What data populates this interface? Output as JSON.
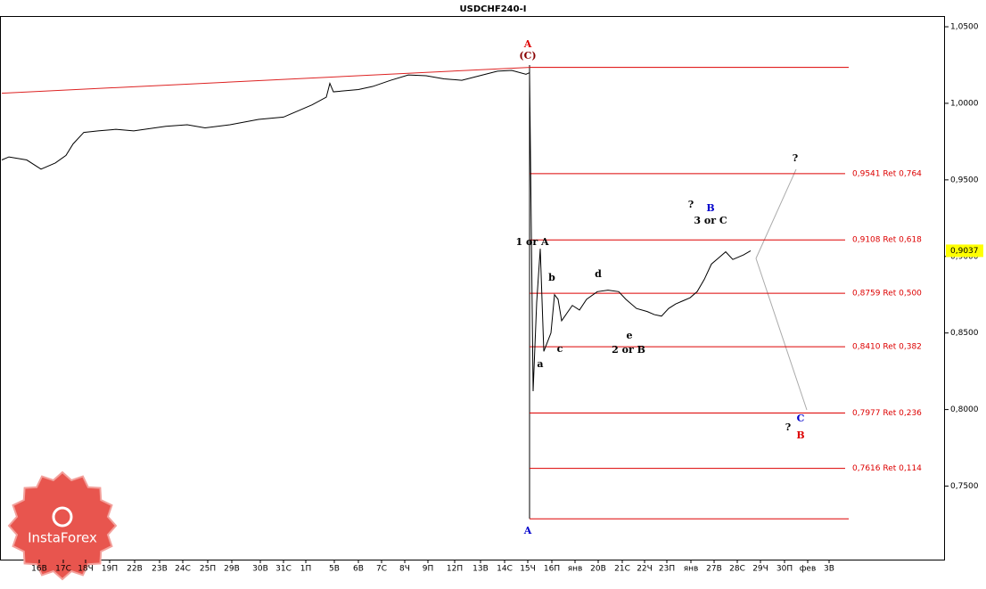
{
  "chart_data": {
    "type": "line",
    "title": "USDCHF240-I",
    "x": [
      0,
      2,
      7,
      11,
      15,
      18,
      20,
      23,
      27,
      32,
      37,
      46,
      52,
      57,
      64,
      72,
      79,
      83,
      87,
      91,
      92,
      93,
      100,
      104,
      109,
      114,
      119,
      124,
      129,
      134,
      139,
      143,
      147,
      148,
      149,
      150,
      151,
      152,
      154,
      155,
      156,
      157,
      160,
      162,
      164,
      167,
      170,
      173,
      175,
      178,
      181,
      183,
      185,
      187,
      189,
      191,
      193,
      195,
      197,
      199,
      201,
      203,
      205,
      208,
      210
    ],
    "series": [
      {
        "name": "USDCHF240-I",
        "color": "#000000",
        "values": [
          0.963,
          0.965,
          0.963,
          0.957,
          0.961,
          0.966,
          0.9735,
          0.981,
          0.982,
          0.983,
          0.982,
          0.985,
          0.986,
          0.984,
          0.986,
          0.9895,
          0.991,
          0.995,
          0.999,
          1.004,
          1.013,
          1.0075,
          1.009,
          1.011,
          1.015,
          1.0185,
          1.018,
          1.016,
          1.015,
          1.018,
          1.021,
          1.0215,
          1.019,
          1.02,
          0.812,
          0.87,
          0.905,
          0.838,
          0.85,
          0.875,
          0.872,
          0.858,
          0.868,
          0.865,
          0.872,
          0.877,
          0.878,
          0.877,
          0.872,
          0.866,
          0.864,
          0.862,
          0.861,
          0.866,
          0.869,
          0.871,
          0.873,
          0.877,
          0.885,
          0.895,
          0.899,
          0.903,
          0.898,
          0.901,
          0.9037
        ]
      }
    ],
    "xlim": [
      0,
      264
    ],
    "xticks": [
      {
        "value": 10.5,
        "label": "16В"
      },
      {
        "value": 17.25,
        "label": "17С"
      },
      {
        "value": 23.5,
        "label": "18Ч"
      },
      {
        "value": 30.25,
        "label": "19П"
      },
      {
        "value": 37.25,
        "label": "22В"
      },
      {
        "value": 44.25,
        "label": "23В"
      },
      {
        "value": 50.75,
        "label": "24С"
      },
      {
        "value": 57.75,
        "label": "25П"
      },
      {
        "value": 64.5,
        "label": "29В"
      },
      {
        "value": 72.5,
        "label": "30В"
      },
      {
        "value": 79,
        "label": "31С"
      },
      {
        "value": 85.25,
        "label": "1П"
      },
      {
        "value": 93.25,
        "label": "5В"
      },
      {
        "value": 100,
        "label": "6В"
      },
      {
        "value": 106.5,
        "label": "7С"
      },
      {
        "value": 113,
        "label": "8Ч"
      },
      {
        "value": 119.5,
        "label": "9П"
      },
      {
        "value": 127,
        "label": "12П"
      },
      {
        "value": 134.25,
        "label": "13В"
      },
      {
        "value": 141,
        "label": "14С"
      },
      {
        "value": 147.5,
        "label": "15Ч"
      },
      {
        "value": 154.25,
        "label": "16П"
      },
      {
        "value": 160.75,
        "label": "янв"
      },
      {
        "value": 167.25,
        "label": "20В"
      },
      {
        "value": 174,
        "label": "21С"
      },
      {
        "value": 180.25,
        "label": "22Ч"
      },
      {
        "value": 186.5,
        "label": "23П"
      },
      {
        "value": 193.25,
        "label": "янв"
      },
      {
        "value": 199.75,
        "label": "27В"
      },
      {
        "value": 206.25,
        "label": "28С"
      },
      {
        "value": 212.75,
        "label": "29Ч"
      },
      {
        "value": 219.5,
        "label": "30П"
      },
      {
        "value": 226,
        "label": "фев"
      },
      {
        "value": 232,
        "label": "3В"
      }
    ],
    "ylim": [
      0.702,
      1.057
    ],
    "yticks": [
      {
        "value": 0.75,
        "label": "0,7500"
      },
      {
        "value": 0.8,
        "label": "0,8000"
      },
      {
        "value": 0.85,
        "label": "0,8500"
      },
      {
        "value": 0.9,
        "label": "0,9000"
      },
      {
        "value": 0.95,
        "label": "0,9500"
      },
      {
        "value": 1.0,
        "label": "1,0000"
      },
      {
        "value": 1.05,
        "label": "1,0500"
      }
    ],
    "current_price": {
      "value": 0.9037,
      "label": "0,9037"
    },
    "trend_line": {
      "x": [
        0,
        148
      ],
      "values": [
        1.0066,
        1.0235
      ],
      "color": "#d22"
    },
    "levels": [
      {
        "value": 1.0235
      },
      {
        "value": 0.9541,
        "label": "0,9541 Ret 0,764"
      },
      {
        "value": 0.9108,
        "label": "0,9108 Ret 0,618"
      },
      {
        "value": 0.8759,
        "label": "0,8759 Ret 0,500"
      },
      {
        "value": 0.841,
        "label": "0,8410 Ret 0,382"
      },
      {
        "value": 0.7977,
        "label": "0,7977 Ret 0,236"
      },
      {
        "value": 0.7616,
        "label": "0,7616 Ret 0,114"
      },
      {
        "value": 0.7286
      }
    ],
    "level_color": "#d00",
    "annotations": [
      {
        "text": "A",
        "color": "#d00"
      },
      {
        "text": "(C)",
        "color": "#800"
      },
      {
        "text": "1 or A",
        "color": "#000"
      },
      {
        "text": "b",
        "color": "#000"
      },
      {
        "text": "a",
        "color": "#000"
      },
      {
        "text": "c",
        "color": "#000"
      },
      {
        "text": "d",
        "color": "#000"
      },
      {
        "text": "e",
        "color": "#000"
      },
      {
        "text": "2 or B",
        "color": "#000"
      },
      {
        "text": "?",
        "color": "#000"
      },
      {
        "text": "B",
        "color": "#00c"
      },
      {
        "text": "3 or C",
        "color": "#000"
      },
      {
        "text": "?",
        "color": "#000"
      },
      {
        "text": "C",
        "color": "#00c"
      },
      {
        "text": "?",
        "color": "#000"
      },
      {
        "text": "B",
        "color": "#d00"
      },
      {
        "text": "A",
        "color": "#00c"
      }
    ],
    "logo": "InstaForex"
  }
}
